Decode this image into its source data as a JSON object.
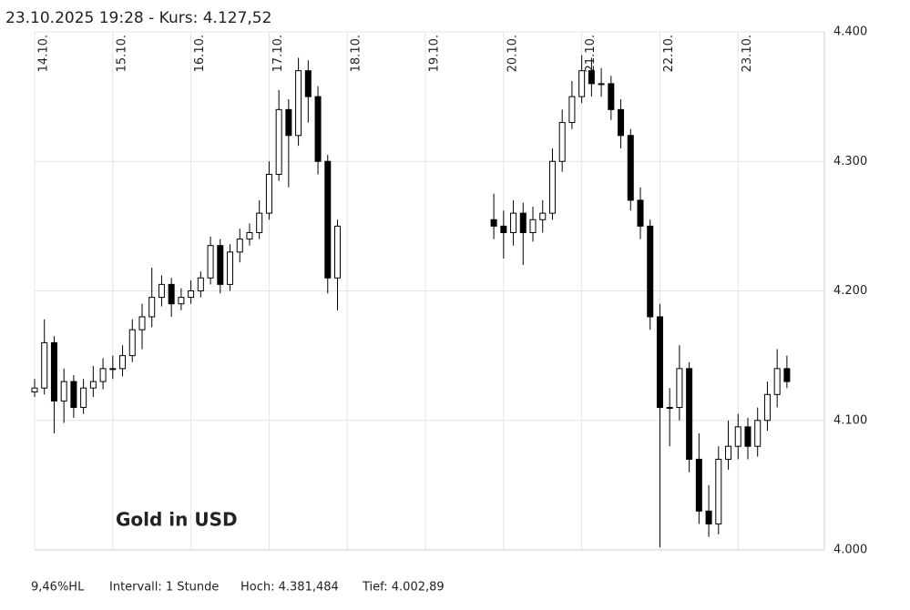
{
  "chart_data": {
    "type": "candlestick",
    "title": "23.10.2025 19:28  -  Kurs: 4.127,52",
    "annotation": "Gold in USD",
    "footer": [
      "9,46%HL",
      "Intervall: 1 Stunde",
      "Hoch: 4.381,484",
      "Tief:  4.002,89"
    ],
    "up_color": "#ffffff",
    "down_color": "#000000",
    "annotation_color": "#d0202a",
    "grid": true,
    "xlim": [
      0,
      242.5
    ],
    "xticks": [
      {
        "value": 0,
        "label": "14.10."
      },
      {
        "value": 24,
        "label": "15.10."
      },
      {
        "value": 48,
        "label": "16.10."
      },
      {
        "value": 72,
        "label": "17.10."
      },
      {
        "value": 96,
        "label": "18.10."
      },
      {
        "value": 120,
        "label": "19.10."
      },
      {
        "value": 144,
        "label": "20.10."
      },
      {
        "value": 168,
        "label": "21.10."
      },
      {
        "value": 192,
        "label": "22.10."
      },
      {
        "value": 216,
        "label": "23.10."
      }
    ],
    "ylim": [
      4000,
      4400
    ],
    "yticks": [
      {
        "value": 4000,
        "label": "4.000"
      },
      {
        "value": 4100,
        "label": "4.100"
      },
      {
        "value": 4200,
        "label": "4.200"
      },
      {
        "value": 4300,
        "label": "4.300"
      },
      {
        "value": 4400,
        "label": "4.400"
      }
    ],
    "x": [
      0,
      3,
      6,
      9,
      12,
      15,
      18,
      21,
      24,
      27,
      30,
      33,
      36,
      39,
      42,
      45,
      48,
      51,
      54,
      57,
      60,
      63,
      66,
      69,
      72,
      75,
      78,
      81,
      84,
      87,
      90,
      93,
      141,
      144,
      147,
      150,
      153,
      156,
      159,
      162,
      165,
      168,
      171,
      174,
      177,
      180,
      183,
      186,
      189,
      192,
      195,
      198,
      201,
      204,
      207,
      210,
      213,
      216,
      219,
      222,
      225,
      228,
      231
    ],
    "open": [
      4122,
      4125,
      4160,
      4115,
      4130,
      4110,
      4125,
      4130,
      4140,
      4140,
      4150,
      4170,
      4180,
      4195,
      4205,
      4190,
      4195,
      4200,
      4210,
      4235,
      4205,
      4230,
      4240,
      4245,
      4260,
      4290,
      4340,
      4320,
      4370,
      4350,
      4300,
      4210,
      4255,
      4250,
      4245,
      4260,
      4245,
      4255,
      4260,
      4300,
      4330,
      4350,
      4370,
      4360,
      4360,
      4340,
      4320,
      4270,
      4250,
      4180,
      4110,
      4110,
      4140,
      4070,
      4030,
      4020,
      4070,
      4080,
      4095,
      4080,
      4100,
      4120,
      4140
    ],
    "high": [
      4132,
      4178,
      4165,
      4140,
      4135,
      4132,
      4142,
      4148,
      4150,
      4158,
      4178,
      4190,
      4218,
      4212,
      4210,
      4202,
      4208,
      4215,
      4242,
      4240,
      4236,
      4248,
      4252,
      4270,
      4300,
      4355,
      4348,
      4380,
      4378,
      4358,
      4305,
      4255,
      4275,
      4262,
      4270,
      4268,
      4265,
      4270,
      4310,
      4340,
      4362,
      4382,
      4380,
      4372,
      4366,
      4348,
      4325,
      4280,
      4255,
      4190,
      4125,
      4158,
      4145,
      4090,
      4050,
      4080,
      4100,
      4105,
      4102,
      4110,
      4130,
      4155,
      4150
    ],
    "low": [
      4118,
      4120,
      4090,
      4098,
      4102,
      4105,
      4118,
      4124,
      4132,
      4134,
      4145,
      4155,
      4172,
      4188,
      4180,
      4185,
      4190,
      4195,
      4205,
      4198,
      4200,
      4222,
      4235,
      4240,
      4255,
      4285,
      4280,
      4312,
      4330,
      4290,
      4198,
      4185,
      4240,
      4225,
      4235,
      4220,
      4238,
      4245,
      4255,
      4292,
      4325,
      4345,
      4350,
      4350,
      4332,
      4310,
      4262,
      4240,
      4170,
      4002,
      4080,
      4100,
      4060,
      4020,
      4010,
      4012,
      4062,
      4070,
      4070,
      4072,
      4092,
      4110,
      4125
    ],
    "close": [
      4125,
      4160,
      4115,
      4130,
      4110,
      4125,
      4130,
      4140,
      4140,
      4150,
      4170,
      4180,
      4195,
      4205,
      4190,
      4195,
      4200,
      4210,
      4235,
      4205,
      4230,
      4240,
      4245,
      4260,
      4290,
      4340,
      4320,
      4370,
      4350,
      4300,
      4210,
      4250,
      4250,
      4245,
      4260,
      4245,
      4255,
      4260,
      4300,
      4330,
      4350,
      4370,
      4360,
      4360,
      4340,
      4320,
      4270,
      4250,
      4180,
      4110,
      4110,
      4140,
      4070,
      4030,
      4020,
      4070,
      4080,
      4095,
      4080,
      4100,
      4120,
      4140,
      4130
    ]
  }
}
